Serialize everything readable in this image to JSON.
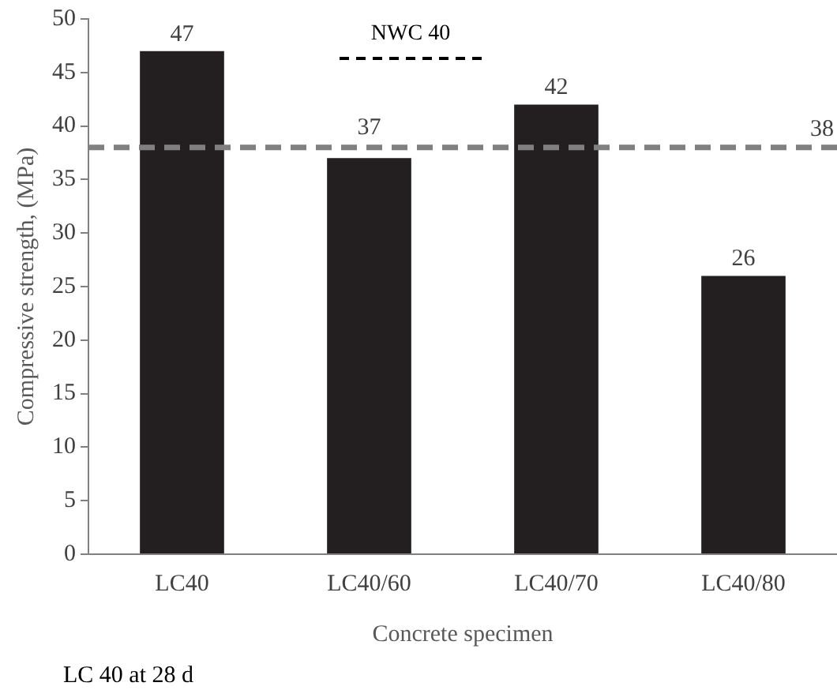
{
  "chart_data": {
    "type": "bar",
    "xlabel": "Concrete specimen",
    "ylabel": "Compressive strength, (MPa)",
    "categories": [
      "LC40",
      "LC40/60",
      "LC40/70",
      "LC40/80"
    ],
    "values": [
      47,
      37,
      42,
      26
    ],
    "color": "#231f20",
    "data_labels": true,
    "ylim": [
      0,
      50
    ],
    "yticks": [
      0,
      5,
      10,
      15,
      20,
      25,
      30,
      35,
      40,
      45,
      50
    ],
    "grid": false,
    "ref_lines": [
      {
        "axis": "y",
        "value": 38,
        "label": "38",
        "color": "#808080",
        "line_style": "dashed"
      }
    ],
    "annotations": [
      "NWC 40",
      "LC 40 at 28 d"
    ]
  }
}
